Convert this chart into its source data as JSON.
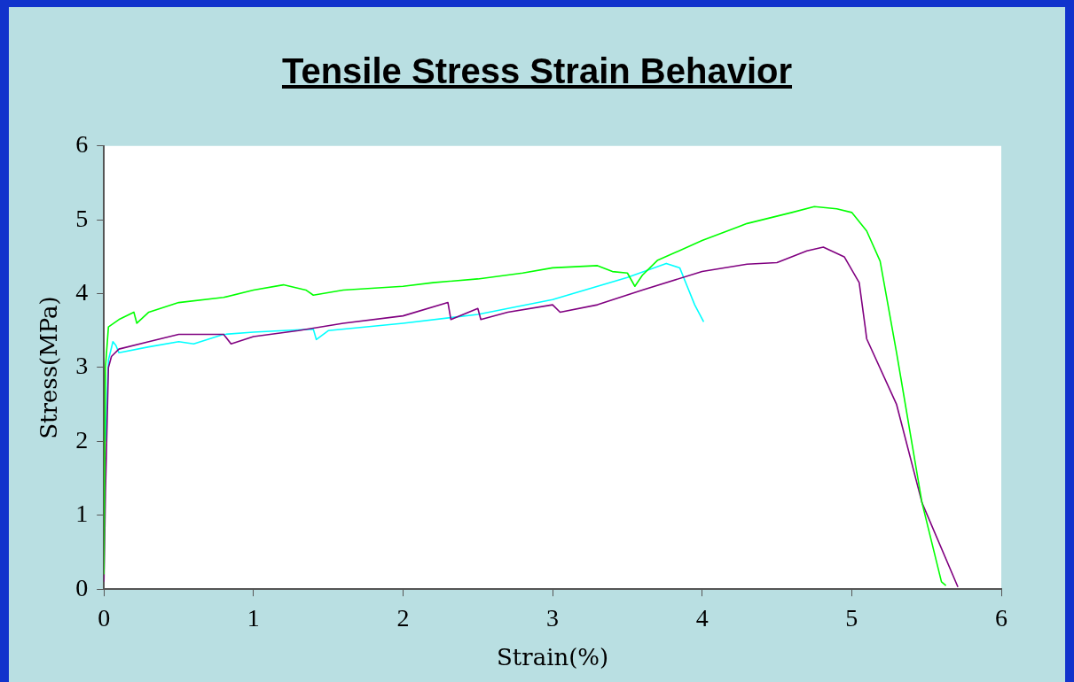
{
  "chart_data": {
    "type": "line",
    "title": "Tensile Stress Strain Behavior",
    "xlabel": "Strain(%)",
    "ylabel": "Stress(MPa)",
    "xlim": [
      0,
      6
    ],
    "xticks": [
      0,
      1,
      2,
      3,
      4,
      5,
      6
    ],
    "ylim": [
      0,
      6
    ],
    "yticks": [
      0,
      1,
      2,
      3,
      4,
      5,
      6
    ],
    "grid": false,
    "legend": false,
    "marker": "none",
    "line_style": "solid",
    "series": [
      {
        "color": "#00ff00",
        "x": [
          0,
          0.01,
          0.03,
          0.1,
          0.2,
          0.22,
          0.3,
          0.5,
          0.8,
          1.0,
          1.2,
          1.35,
          1.4,
          1.6,
          2.0,
          2.2,
          2.5,
          2.8,
          3.0,
          3.3,
          3.4,
          3.5,
          3.55,
          3.6,
          3.7,
          4.0,
          4.3,
          4.6,
          4.75,
          4.9,
          5.0,
          5.1,
          5.19,
          5.3,
          5.47,
          5.6,
          5.63
        ],
        "values": [
          0.2,
          3.0,
          3.55,
          3.65,
          3.75,
          3.6,
          3.75,
          3.88,
          3.95,
          4.05,
          4.12,
          4.05,
          3.98,
          4.05,
          4.1,
          4.15,
          4.2,
          4.28,
          4.35,
          4.38,
          4.3,
          4.28,
          4.1,
          4.25,
          4.45,
          4.72,
          4.95,
          5.1,
          5.18,
          5.15,
          5.1,
          4.85,
          4.44,
          3.2,
          1.17,
          0.1,
          0.05
        ]
      },
      {
        "color": "#800080",
        "x": [
          0,
          0.01,
          0.03,
          0.05,
          0.1,
          0.3,
          0.5,
          0.8,
          0.85,
          1.0,
          1.3,
          1.6,
          2.0,
          2.3,
          2.32,
          2.5,
          2.52,
          2.7,
          3.0,
          3.05,
          3.3,
          3.6,
          4.0,
          4.3,
          4.5,
          4.7,
          4.81,
          4.95,
          5.05,
          5.09,
          5.1,
          5.3,
          5.47,
          5.71
        ],
        "values": [
          0.1,
          1.3,
          3.0,
          3.15,
          3.25,
          3.35,
          3.45,
          3.45,
          3.32,
          3.42,
          3.5,
          3.6,
          3.7,
          3.88,
          3.65,
          3.8,
          3.65,
          3.75,
          3.85,
          3.75,
          3.85,
          4.05,
          4.3,
          4.4,
          4.42,
          4.58,
          4.63,
          4.5,
          4.15,
          3.55,
          3.39,
          2.5,
          1.17,
          0.03
        ]
      },
      {
        "color": "#00ffff",
        "x": [
          0.01,
          0.03,
          0.06,
          0.08,
          0.1,
          0.3,
          0.5,
          0.6,
          0.8,
          1.0,
          1.2,
          1.4,
          1.42,
          1.5,
          2.0,
          2.5,
          3.0,
          3.5,
          3.76,
          3.85,
          3.9,
          3.95,
          4.01
        ],
        "values": [
          2.0,
          3.1,
          3.35,
          3.3,
          3.2,
          3.28,
          3.35,
          3.32,
          3.45,
          3.48,
          3.5,
          3.52,
          3.38,
          3.5,
          3.6,
          3.72,
          3.92,
          4.22,
          4.41,
          4.35,
          4.1,
          3.85,
          3.62
        ]
      }
    ]
  }
}
